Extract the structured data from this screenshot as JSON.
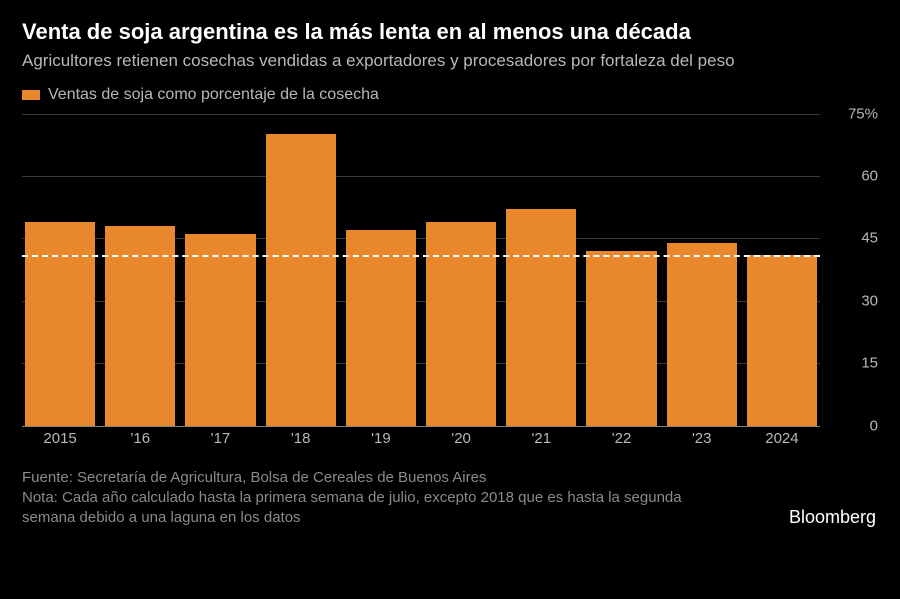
{
  "title": "Venta de soja argentina es la más lenta en al menos una década",
  "subtitle": "Agricultores retienen cosechas vendidas a exportadores y procesadores por fortaleza del peso",
  "legend": {
    "label": "Ventas de soja como porcentaje de la cosecha"
  },
  "chart": {
    "type": "bar",
    "categories": [
      "2015",
      "'16",
      "'17",
      "'18",
      "'19",
      "'20",
      "'21",
      "'22",
      "'23",
      "2024"
    ],
    "values": [
      49,
      48,
      46,
      70,
      47,
      49,
      52,
      42,
      44,
      41
    ],
    "bar_color": "#e8872b",
    "background_color": "#000000",
    "grid_color": "#3a3a3a",
    "text_color": "#b8b8b8",
    "ylim": [
      0,
      75
    ],
    "yticks": [
      0,
      15,
      30,
      45,
      60,
      75
    ],
    "ytick_labels": [
      "0",
      "15",
      "30",
      "45",
      "60",
      "75%"
    ],
    "reference_line": 41,
    "reference_line_color": "#ffffff",
    "bar_width": 0.92,
    "title_fontsize": 22,
    "title_color": "#ffffff",
    "subtitle_fontsize": 17,
    "label_fontsize": 15
  },
  "footer": {
    "source": "Fuente: Secretaría de Agricultura, Bolsa de Cereales de Buenos Aires",
    "note": "Nota: Cada año calculado hasta la primera semana de julio, excepto 2018 que es hasta la segunda semana debido a una laguna en los datos",
    "brand": "Bloomberg"
  }
}
